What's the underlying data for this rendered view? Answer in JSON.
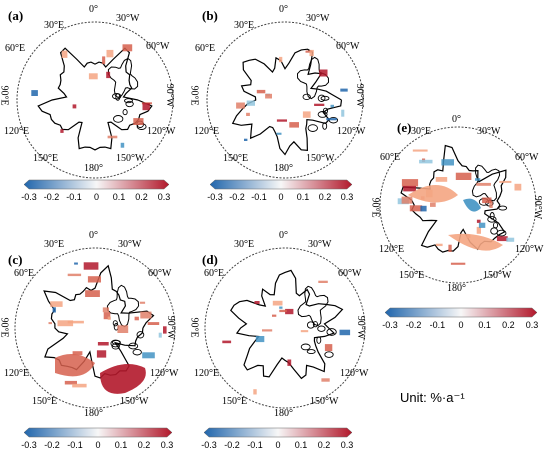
{
  "panels": [
    {
      "label": "(a)",
      "lat_top": "0°",
      "lon_30e": "30°E",
      "lon_30w": "30°W",
      "lon_60e": "60°E",
      "lon_60w": "60°W",
      "lon_90e": "90°E",
      "lon_90w": "90°W",
      "lon_120e": "120°E",
      "lon_120w": "120°W",
      "lon_150e": "150°E",
      "lon_150w": "150°W",
      "lon_180": "180°"
    },
    {
      "label": "(b)",
      "lat_top": "0°",
      "lon_30e": "30°E",
      "lon_30w": "30°W",
      "lon_60e": "60°E",
      "lon_60w": "60°W",
      "lon_90e": "90°E",
      "lon_90w": "90°W",
      "lon_120e": "120°E",
      "lon_120w": "120°W",
      "lon_150e": "150°E",
      "lon_150w": "150°W",
      "lon_180": "180°"
    },
    {
      "label": "(c)",
      "lat_top": "0°",
      "lon_30e": "30°E",
      "lon_30w": "30°W",
      "lon_60e": "60°E",
      "lon_60w": "60°W",
      "lon_90e": "90°E",
      "lon_90w": "90°W",
      "lon_120e": "120°E",
      "lon_120w": "120°W",
      "lon_150e": "150°E",
      "lon_150w": "150°W",
      "lon_180": "180°"
    },
    {
      "label": "(d)",
      "lat_top": "0°",
      "lon_30e": "30°E",
      "lon_30w": "30°W",
      "lon_60e": "60°E",
      "lon_60w": "60°W",
      "lon_90e": "90°E",
      "lon_90w": "90°W",
      "lon_120e": "120°E",
      "lon_120w": "120°W",
      "lon_150e": "150°E",
      "lon_150w": "150°W",
      "lon_180": "180°"
    },
    {
      "label": "(e)",
      "lat_top": "0°",
      "lon_30e": "30°E",
      "lon_30w": "30°W",
      "lon_60e": "60°E",
      "lon_60w": "60°W",
      "lon_90e": "90°E",
      "lon_90w": "90°W",
      "lon_120e": "120°E",
      "lon_120w": "120°W",
      "lon_150e": "150°E",
      "lon_150w": "150°W",
      "lon_180": "180°"
    }
  ],
  "colorbar": {
    "ticks": [
      "-0.3",
      "-0.2",
      "-0.1",
      "0",
      "0.1",
      "0.2",
      "0.3"
    ],
    "colors": {
      "negative": "#2166ac",
      "neutral": "#f7f7f7",
      "positive": "#b2182b"
    }
  },
  "unit_text": "Unit:  %·a⁻¹"
}
